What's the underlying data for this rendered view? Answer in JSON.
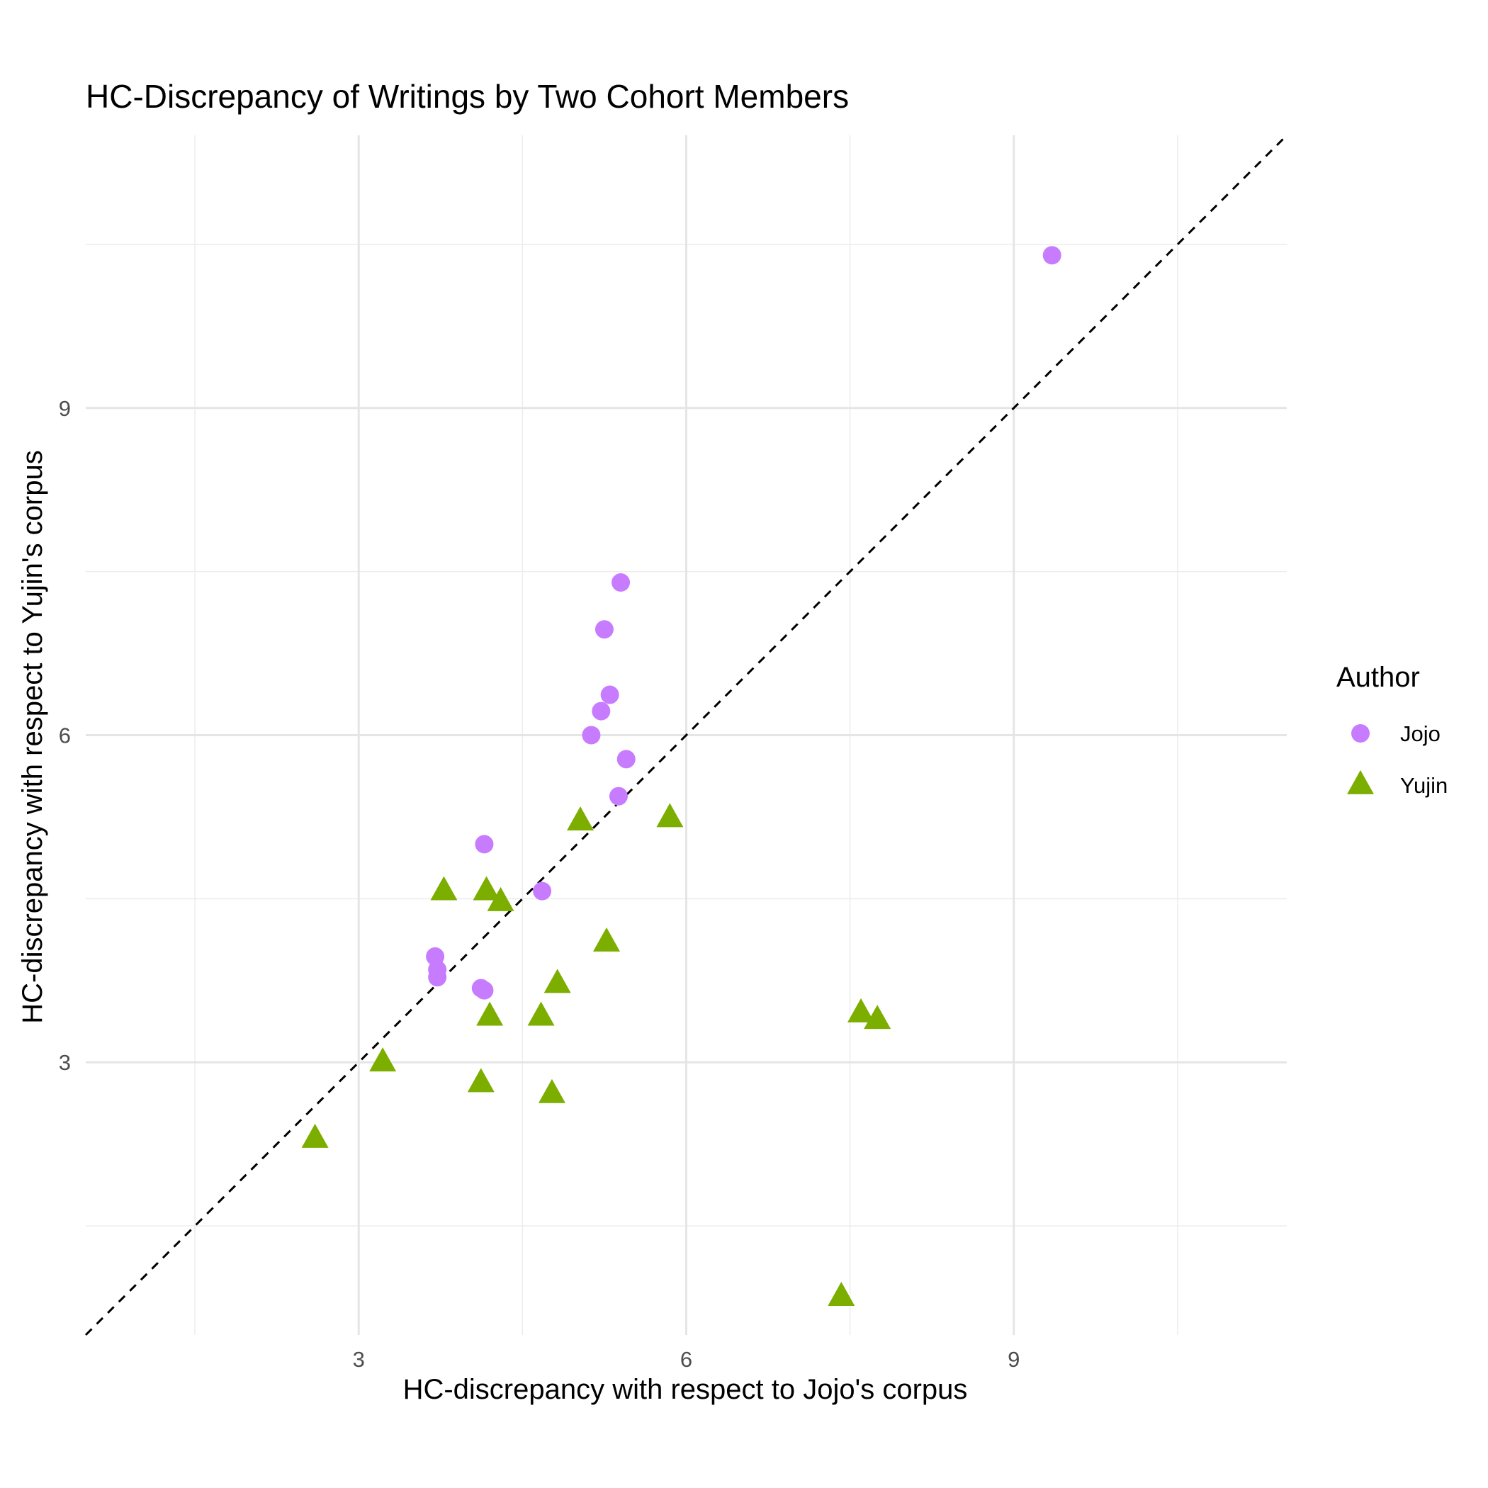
{
  "chart_data": {
    "type": "scatter",
    "title": "HC-Discrepancy of Writings by Two Cohort Members",
    "xlabel": "HC-discrepancy with respect to Jojo's corpus",
    "ylabel": "HC-discrepancy with respect to Yujin's corpus",
    "xlim": [
      0.5,
      11.5
    ],
    "ylim": [
      0.5,
      11.5
    ],
    "x_ticks": [
      3,
      6,
      9
    ],
    "y_ticks": [
      3,
      6,
      9
    ],
    "x_tick_labels": [
      "3",
      "6",
      "9"
    ],
    "y_tick_labels": [
      "3",
      "6",
      "9"
    ],
    "grid": true,
    "reference_line": {
      "type": "identity",
      "style": "dashed",
      "color": "#000000"
    },
    "legend": {
      "title": "Author",
      "position": "right"
    },
    "series": [
      {
        "name": "Jojo",
        "marker": "circle",
        "color": "#C77CFF",
        "points": [
          {
            "x": 9.35,
            "y": 10.4
          },
          {
            "x": 5.4,
            "y": 7.4
          },
          {
            "x": 5.25,
            "y": 6.97
          },
          {
            "x": 5.3,
            "y": 6.37
          },
          {
            "x": 5.22,
            "y": 6.22
          },
          {
            "x": 5.13,
            "y": 6.0
          },
          {
            "x": 5.45,
            "y": 5.78
          },
          {
            "x": 5.38,
            "y": 5.44
          },
          {
            "x": 4.15,
            "y": 5.0
          },
          {
            "x": 4.68,
            "y": 4.57
          },
          {
            "x": 3.7,
            "y": 3.97
          },
          {
            "x": 3.72,
            "y": 3.85
          },
          {
            "x": 3.72,
            "y": 3.78
          },
          {
            "x": 4.12,
            "y": 3.68
          },
          {
            "x": 4.15,
            "y": 3.66
          }
        ]
      },
      {
        "name": "Yujin",
        "marker": "triangle",
        "color": "#7CAE00",
        "points": [
          {
            "x": 5.85,
            "y": 5.24
          },
          {
            "x": 5.03,
            "y": 5.21
          },
          {
            "x": 3.78,
            "y": 4.57
          },
          {
            "x": 4.17,
            "y": 4.57
          },
          {
            "x": 4.3,
            "y": 4.47
          },
          {
            "x": 5.27,
            "y": 4.1
          },
          {
            "x": 4.82,
            "y": 3.72
          },
          {
            "x": 4.2,
            "y": 3.42
          },
          {
            "x": 4.67,
            "y": 3.42
          },
          {
            "x": 7.6,
            "y": 3.45
          },
          {
            "x": 7.75,
            "y": 3.39
          },
          {
            "x": 3.22,
            "y": 3.0
          },
          {
            "x": 4.12,
            "y": 2.81
          },
          {
            "x": 4.77,
            "y": 2.71
          },
          {
            "x": 2.6,
            "y": 2.3
          },
          {
            "x": 7.42,
            "y": 0.85
          }
        ]
      }
    ]
  }
}
